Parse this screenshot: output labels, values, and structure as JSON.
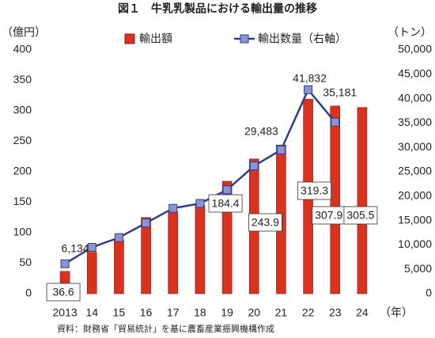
{
  "chart_data": {
    "type": "bar_line",
    "title": "図１　牛乳乳製品における輸出量の推移",
    "y_label": "（億円）",
    "y2_label": "（トン）",
    "x_label": "（年）",
    "source": "資料：財務省「貿易統計」を基に農畜産業振興機構作成",
    "categories": [
      "2013",
      "14",
      "15",
      "16",
      "17",
      "18",
      "19",
      "20",
      "21",
      "22",
      "23",
      "24"
    ],
    "series": [
      {
        "name": "輸出額",
        "type": "bar",
        "color": "#d9321f",
        "values": [
          36.6,
          68,
          88,
          125,
          135,
          145,
          184.4,
          221,
          243.9,
          319.3,
          307.9,
          305.5
        ],
        "value_labels": [
          "36.6",
          null,
          null,
          null,
          null,
          null,
          "184.4",
          null,
          "243.9",
          "319.3",
          "307.9",
          "305.5"
        ]
      },
      {
        "name": "輸出数量（右軸）",
        "type": "line",
        "axis": "y2",
        "color": "#2e3d8f",
        "values": [
          6134,
          9500,
          11500,
          14500,
          17500,
          18500,
          21300,
          26200,
          29483,
          41832,
          35181,
          null
        ],
        "value_labels": [
          "6,134",
          null,
          null,
          null,
          null,
          null,
          null,
          null,
          "29,483",
          "41,832",
          "35,181",
          null
        ]
      }
    ],
    "ylim": [
      0,
      400
    ],
    "yticks": [
      0,
      50,
      100,
      150,
      200,
      250,
      300,
      350,
      400
    ],
    "y2lim": [
      0,
      50000
    ],
    "y2ticks": [
      0,
      {
        "value": 5000,
        "label": "5,000"
      },
      {
        "value": 10000,
        "label": "10,000"
      },
      {
        "value": 15000,
        "label": "15,000"
      },
      {
        "value": 20000,
        "label": "20,000"
      },
      {
        "value": 25000,
        "label": "25,000"
      },
      {
        "value": 30000,
        "label": "30,000"
      },
      {
        "value": 35000,
        "label": "35,000"
      },
      {
        "value": 40000,
        "label": "40,000"
      },
      {
        "value": 45000,
        "label": "45,000"
      },
      {
        "value": 50000,
        "label": "50,000"
      }
    ],
    "grid": false
  }
}
